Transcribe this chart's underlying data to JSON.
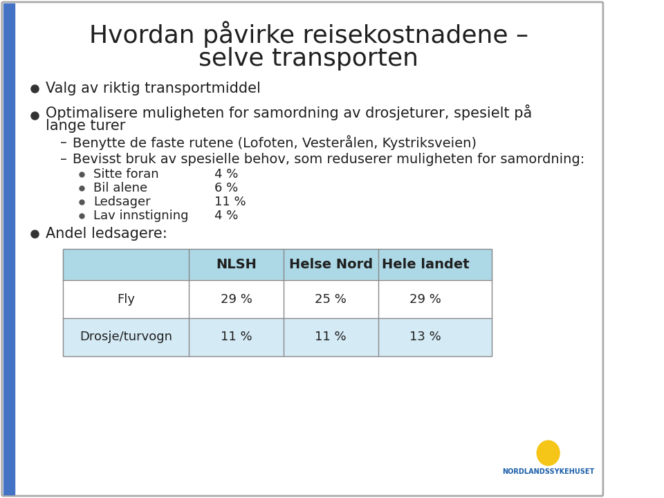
{
  "title_line1": "Hvordan påvirke reisekostnadene –",
  "title_line2": "selve transporten",
  "bg_color": "#ffffff",
  "border_color": "#4472c4",
  "title_color": "#1f1f1f",
  "body_color": "#1f1f1f",
  "bullet1": "Valg av riktig transportmiddel",
  "bullet2_line1": "Optimalisere muligheten for samordning av drosjeturer, spesielt på",
  "bullet2_line2": "lange turer",
  "sub1": "Benytte de faste rutene (Lofoten, Vesterålen, Kystriksveien)",
  "sub2": "Bevisst bruk av spesielle behov, som reduserer muligheten for samordning:",
  "subsub1": "Sitte foran",
  "subsub1_val": "4 %",
  "subsub2": "Bil alene",
  "subsub2_val": "6 %",
  "subsub3": "Ledsager",
  "subsub3_val": "11 %",
  "subsub4": "Lav innstigning",
  "subsub4_val": "4 %",
  "bullet3": "Andel ledsagere:",
  "table_header": [
    "",
    "NLSH",
    "Helse Nord",
    "Hele landet"
  ],
  "table_row1": [
    "Fly",
    "29 %",
    "25 %",
    "29 %"
  ],
  "table_row2": [
    "Drosje/turvogn",
    "11 %",
    "11 %",
    "13 %"
  ],
  "table_header_bg": "#add8e6",
  "table_row1_bg": "#ffffff",
  "table_row2_bg": "#e8f4f8",
  "table_alt_bg": "#d4eaf5",
  "logo_text": "NORDLANDSSYKEHUSET",
  "logo_color": "#1a5ea8"
}
